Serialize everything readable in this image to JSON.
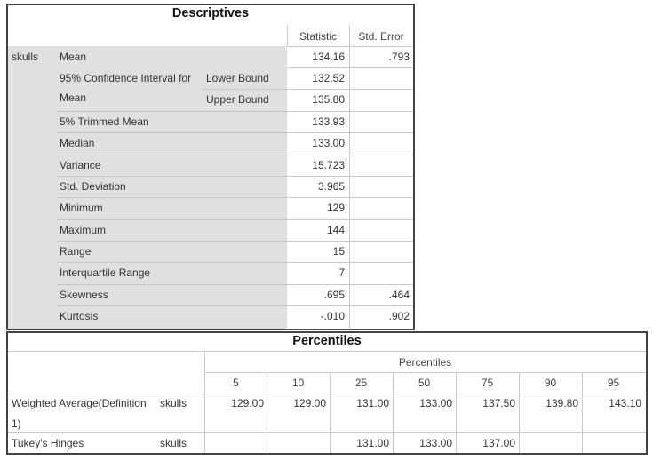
{
  "descriptives": {
    "title": "Descriptives",
    "headers": {
      "statistic": "Statistic",
      "std_error": "Std. Error"
    },
    "variable": "skulls",
    "ci_label_line1": "95% Confidence Interval for",
    "ci_label_line2": "Mean",
    "rows": [
      {
        "label": "Mean",
        "sub": "",
        "statistic": "134.16",
        "std_error": ".793"
      },
      {
        "label": "",
        "sub": "Lower Bound",
        "statistic": "132.52",
        "std_error": ""
      },
      {
        "label": "",
        "sub": "Upper Bound",
        "statistic": "135.80",
        "std_error": ""
      },
      {
        "label": "5% Trimmed Mean",
        "sub": "",
        "statistic": "133.93",
        "std_error": ""
      },
      {
        "label": "Median",
        "sub": "",
        "statistic": "133.00",
        "std_error": ""
      },
      {
        "label": "Variance",
        "sub": "",
        "statistic": "15.723",
        "std_error": ""
      },
      {
        "label": "Std. Deviation",
        "sub": "",
        "statistic": "3.965",
        "std_error": ""
      },
      {
        "label": "Minimum",
        "sub": "",
        "statistic": "129",
        "std_error": ""
      },
      {
        "label": "Maximum",
        "sub": "",
        "statistic": "144",
        "std_error": ""
      },
      {
        "label": "Range",
        "sub": "",
        "statistic": "15",
        "std_error": ""
      },
      {
        "label": "Interquartile Range",
        "sub": "",
        "statistic": "7",
        "std_error": ""
      },
      {
        "label": "Skewness",
        "sub": "",
        "statistic": ".695",
        "std_error": ".464"
      },
      {
        "label": "Kurtosis",
        "sub": "",
        "statistic": "-.010",
        "std_error": ".902"
      }
    ]
  },
  "percentiles": {
    "title": "Percentiles",
    "group_header": "Percentiles",
    "columns": [
      "5",
      "10",
      "25",
      "50",
      "75",
      "90",
      "95"
    ],
    "rows": [
      {
        "label_line1": "Weighted Average(Definition",
        "label_line2": "1)",
        "variable": "skulls",
        "values": [
          "129.00",
          "129.00",
          "131.00",
          "133.00",
          "137.50",
          "139.80",
          "143.10"
        ]
      },
      {
        "label_line1": "Tukey's Hinges",
        "label_line2": "",
        "variable": "skulls",
        "values": [
          "",
          "",
          "131.00",
          "133.00",
          "137.00",
          "",
          ""
        ]
      }
    ]
  }
}
